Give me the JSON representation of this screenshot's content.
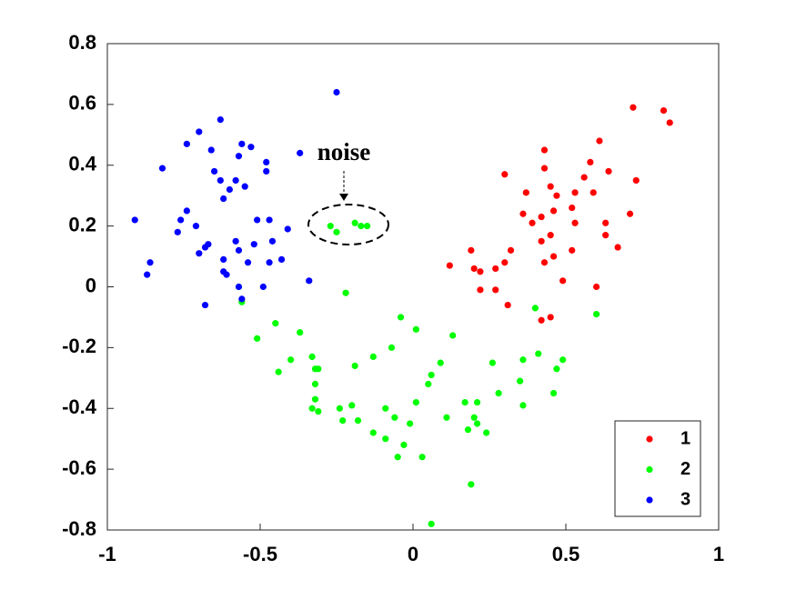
{
  "chart_data": {
    "type": "scatter",
    "annotation": "noise",
    "xlim": [
      -1,
      1
    ],
    "ylim": [
      -0.8,
      0.8
    ],
    "xticks": [
      -1,
      -0.5,
      0,
      0.5,
      1
    ],
    "yticks": [
      -0.8,
      -0.6,
      -0.4,
      -0.2,
      0,
      0.2,
      0.4,
      0.6,
      0.8
    ],
    "legend": "lower right",
    "series": [
      {
        "name": "1",
        "color": "#ff0000",
        "x": [
          0.72,
          0.82,
          0.84,
          0.73,
          0.71,
          0.67,
          0.64,
          0.61,
          0.58,
          0.56,
          0.59,
          0.53,
          0.47,
          0.45,
          0.43,
          0.43,
          0.37,
          0.39,
          0.36,
          0.42,
          0.46,
          0.45,
          0.42,
          0.46,
          0.43,
          0.49,
          0.52,
          0.53,
          0.52,
          0.63,
          0.63,
          0.6,
          0.32,
          0.3,
          0.27,
          0.22,
          0.2,
          0.19,
          0.12,
          0.22,
          0.27,
          0.31,
          0.42,
          0.45,
          0.3
        ],
        "y": [
          0.59,
          0.58,
          0.54,
          0.35,
          0.24,
          0.13,
          0.38,
          0.48,
          0.41,
          0.36,
          0.31,
          0.31,
          0.3,
          0.33,
          0.39,
          0.45,
          0.31,
          0.21,
          0.24,
          0.23,
          0.25,
          0.17,
          0.15,
          0.1,
          0.08,
          0.02,
          0.12,
          0.21,
          0.26,
          0.21,
          0.17,
          0.0,
          0.12,
          0.08,
          0.06,
          0.05,
          0.06,
          0.12,
          0.07,
          -0.01,
          -0.01,
          -0.06,
          -0.11,
          -0.1,
          0.37
        ]
      },
      {
        "name": "2",
        "color": "#00ff00",
        "x": [
          -0.27,
          -0.25,
          -0.19,
          -0.17,
          -0.15,
          -0.22,
          -0.57,
          -0.56,
          -0.45,
          -0.51,
          -0.4,
          -0.44,
          -0.37,
          -0.33,
          -0.32,
          -0.31,
          -0.32,
          -0.32,
          -0.33,
          -0.31,
          -0.24,
          -0.23,
          -0.2,
          -0.19,
          -0.18,
          -0.13,
          -0.07,
          -0.04,
          0.01,
          -0.13,
          -0.09,
          -0.09,
          -0.06,
          -0.05,
          -0.03,
          -0.01,
          0.01,
          0.03,
          0.05,
          0.06,
          0.09,
          0.13,
          0.11,
          0.06,
          0.17,
          0.2,
          0.21,
          0.18,
          0.24,
          0.21,
          0.19,
          0.26,
          0.28,
          0.35,
          0.36,
          0.36,
          0.41,
          0.46,
          0.47,
          0.49,
          0.6,
          0.4
        ],
        "y": [
          0.2,
          0.18,
          0.21,
          0.2,
          0.2,
          -0.02,
          0.0,
          -0.05,
          -0.12,
          -0.17,
          -0.24,
          -0.28,
          -0.15,
          -0.23,
          -0.27,
          -0.27,
          -0.32,
          -0.37,
          -0.4,
          -0.41,
          -0.4,
          -0.44,
          -0.39,
          -0.26,
          -0.44,
          -0.23,
          -0.2,
          -0.1,
          -0.14,
          -0.48,
          -0.4,
          -0.5,
          -0.43,
          -0.56,
          -0.52,
          -0.45,
          -0.38,
          -0.56,
          -0.32,
          -0.29,
          -0.25,
          -0.16,
          -0.43,
          -0.78,
          -0.38,
          -0.43,
          -0.45,
          -0.47,
          -0.48,
          -0.38,
          -0.65,
          -0.25,
          -0.35,
          -0.31,
          -0.39,
          -0.24,
          -0.22,
          -0.35,
          -0.27,
          -0.24,
          -0.09,
          -0.07
        ]
      },
      {
        "name": "3",
        "color": "#0000ff",
        "x": [
          -0.25,
          -0.63,
          -0.7,
          -0.74,
          -0.82,
          -0.91,
          -0.86,
          -0.87,
          -0.66,
          -0.65,
          -0.63,
          -0.56,
          -0.53,
          -0.57,
          -0.58,
          -0.55,
          -0.6,
          -0.48,
          -0.48,
          -0.37,
          -0.62,
          -0.74,
          -0.76,
          -0.77,
          -0.71,
          -0.67,
          -0.68,
          -0.7,
          -0.58,
          -0.57,
          -0.62,
          -0.62,
          -0.61,
          -0.68,
          -0.57,
          -0.56,
          -0.51,
          -0.47,
          -0.46,
          -0.52,
          -0.54,
          -0.47,
          -0.43,
          -0.41,
          -0.49,
          -0.34
        ],
        "y": [
          0.64,
          0.55,
          0.51,
          0.47,
          0.39,
          0.22,
          0.08,
          0.04,
          0.45,
          0.38,
          0.35,
          0.47,
          0.46,
          0.43,
          0.35,
          0.33,
          0.32,
          0.41,
          0.38,
          0.44,
          0.29,
          0.25,
          0.22,
          0.18,
          0.2,
          0.14,
          0.13,
          0.11,
          0.15,
          0.12,
          0.09,
          0.05,
          0.04,
          -0.06,
          0.0,
          -0.04,
          0.22,
          0.22,
          0.15,
          0.14,
          0.08,
          0.08,
          0.09,
          0.19,
          0.0,
          0.02
        ]
      }
    ]
  }
}
